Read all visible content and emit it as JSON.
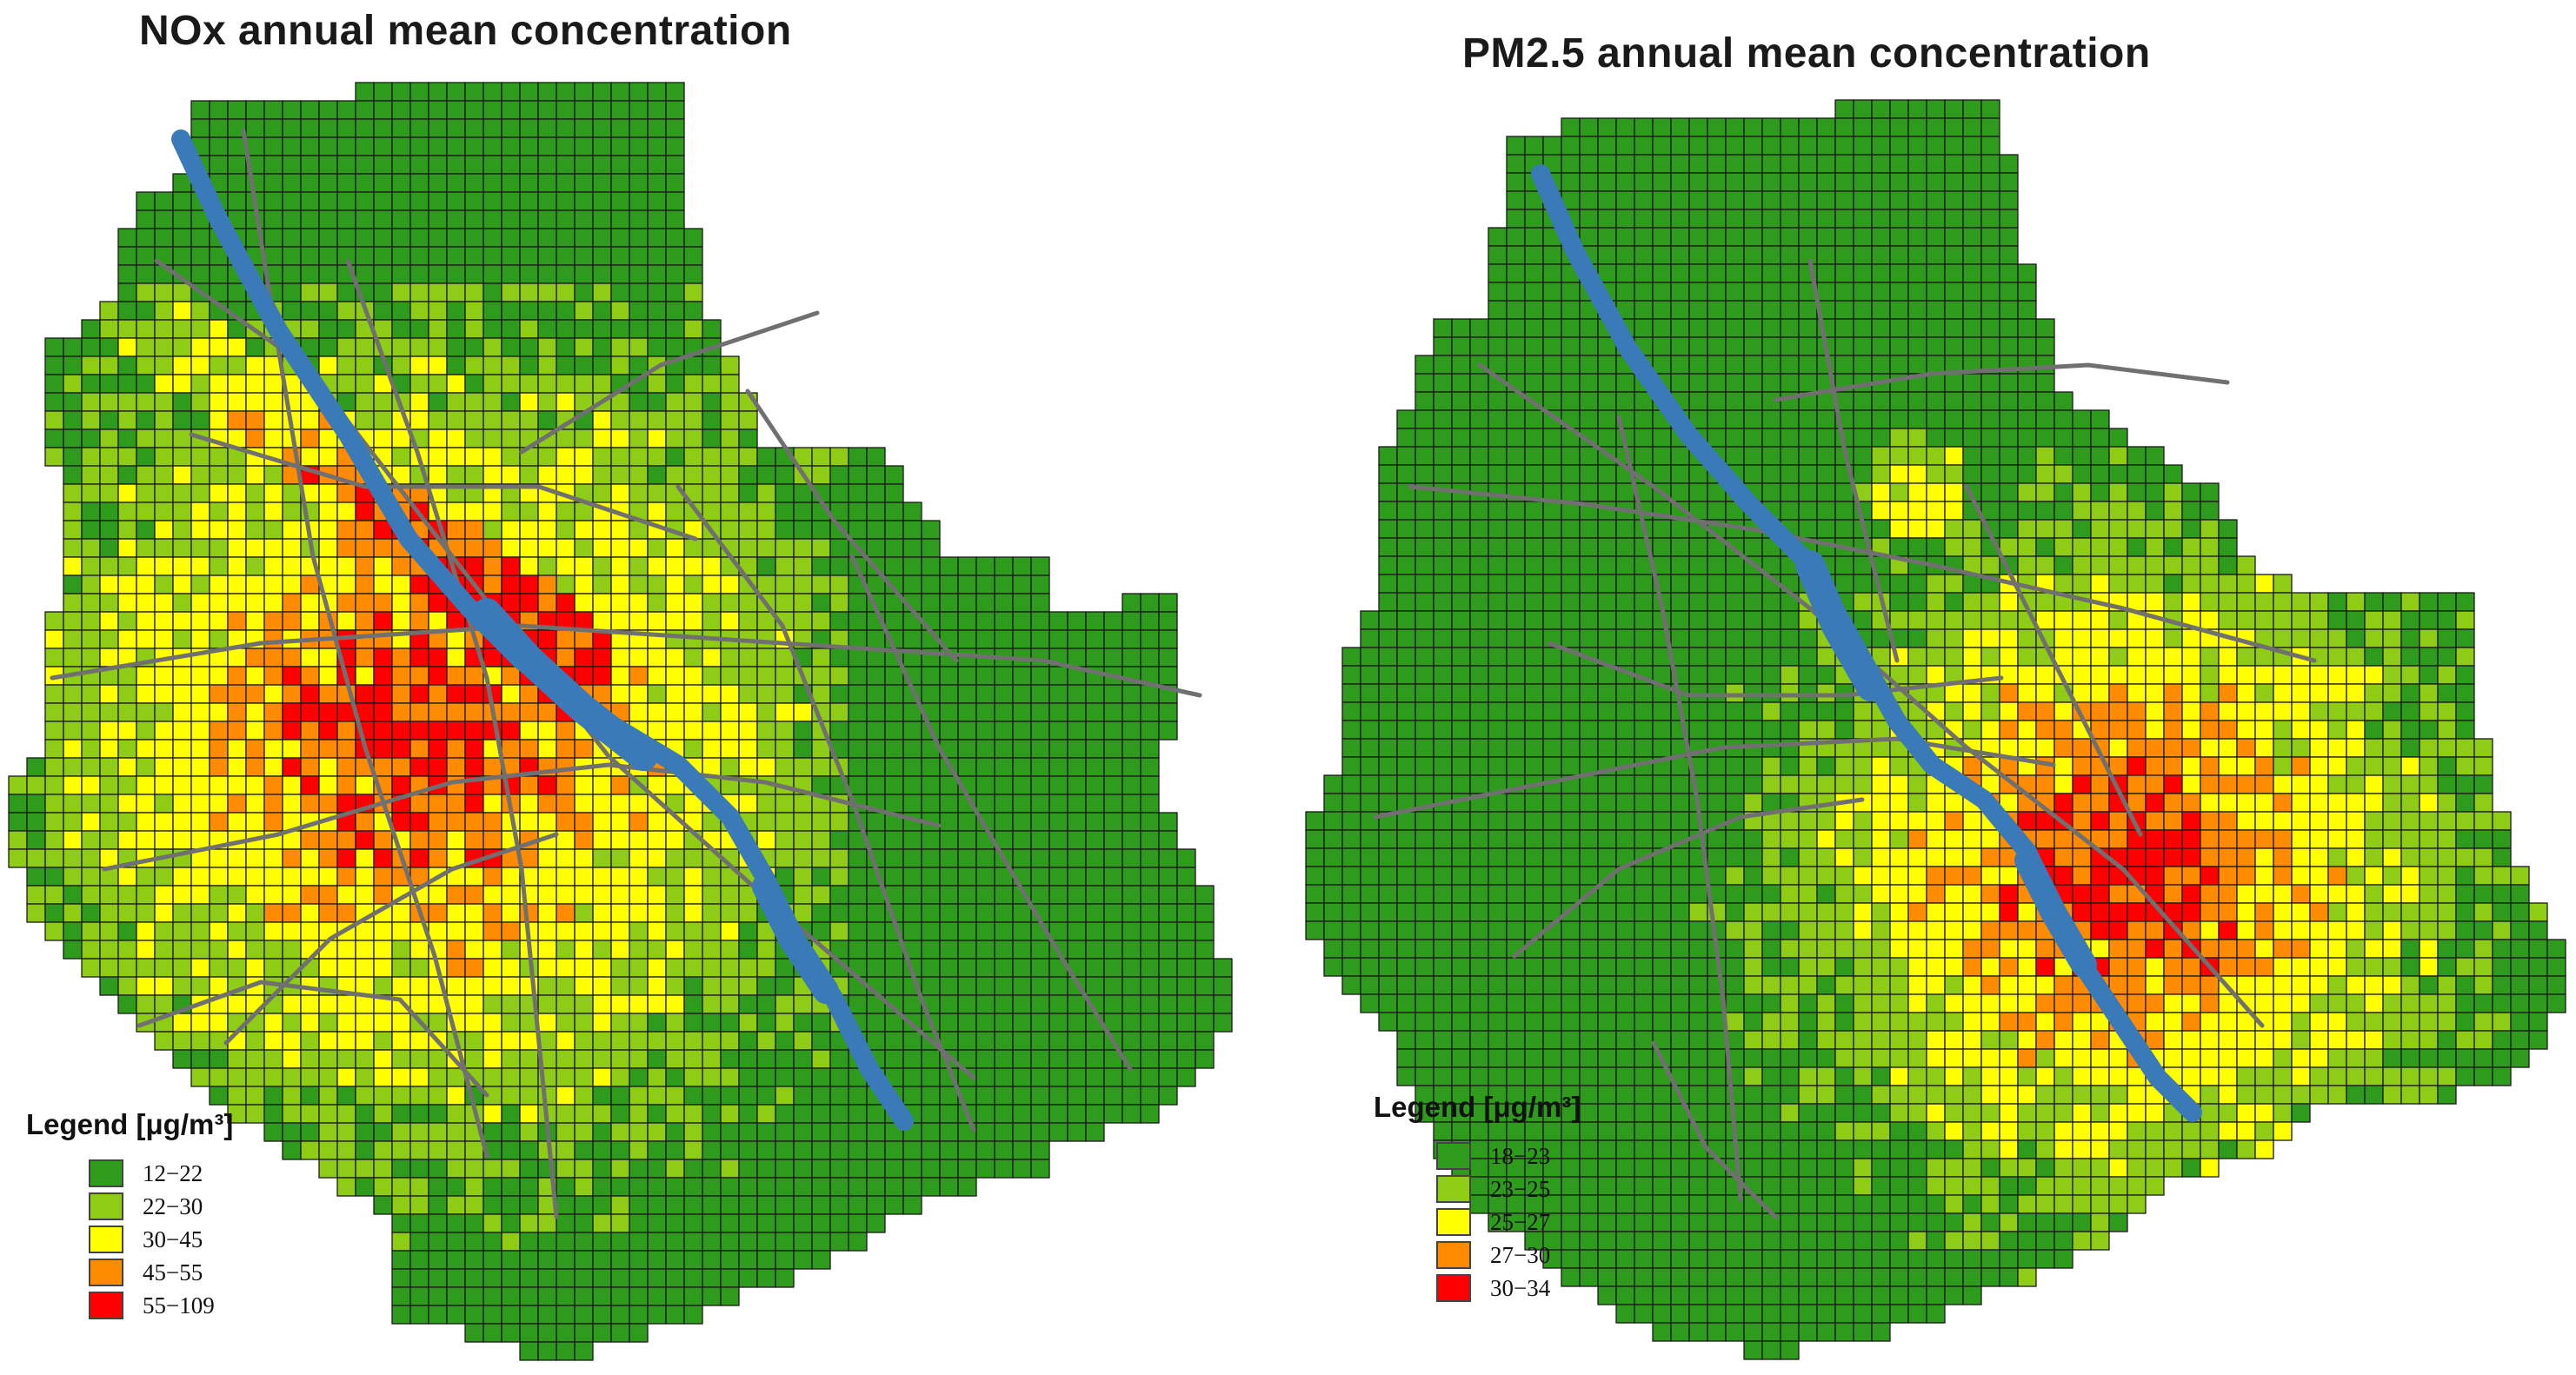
{
  "maps": [
    {
      "id": "nox",
      "title": "NOx annual mean concentration",
      "legend": {
        "title": "Legend [μg/m³]",
        "items": [
          {
            "label": "12−22",
            "color": "#2f9b1c"
          },
          {
            "label": "22−30",
            "color": "#8fcc15"
          },
          {
            "label": "30−45",
            "color": "#ffff00"
          },
          {
            "label": "45−55",
            "color": "#ff8c00"
          },
          {
            "label": "55−109",
            "color": "#ff0000"
          }
        ]
      }
    },
    {
      "id": "pm25",
      "title": "PM2.5 annual mean concentration",
      "legend": {
        "title": "Legend [μg/m³]",
        "items": [
          {
            "label": "18−23",
            "color": "#2f9b1c"
          },
          {
            "label": "23−25",
            "color": "#8fcc15"
          },
          {
            "label": "25−27",
            "color": "#ffff00"
          },
          {
            "label": "27−30",
            "color": "#ff8c00"
          },
          {
            "label": "30−34",
            "color": "#ff0000"
          }
        ]
      }
    }
  ],
  "colors": {
    "river": "#3a7ab8",
    "roads": "#707070",
    "grid_lines": "#1a1a1a"
  }
}
